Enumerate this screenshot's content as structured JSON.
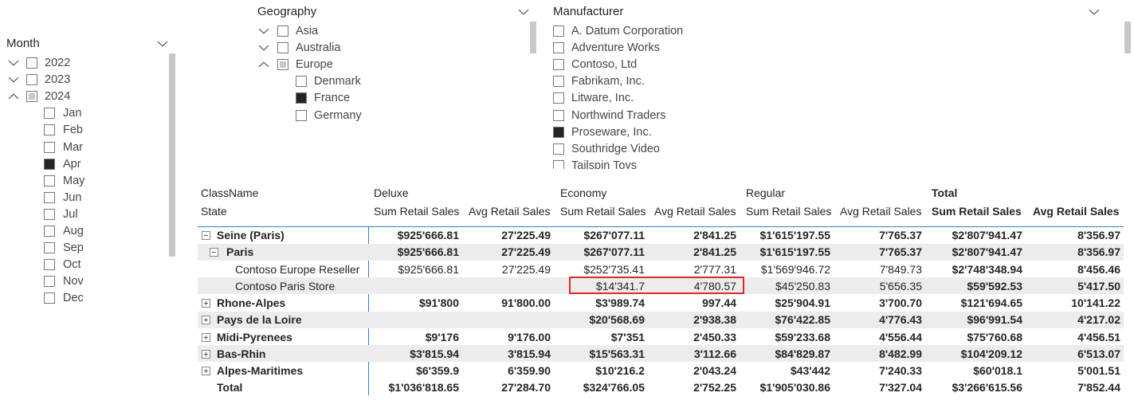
{
  "month_slicer": {
    "title": "Month",
    "items": [
      {
        "label": "2022",
        "expanded": false,
        "check": "off"
      },
      {
        "label": "2023",
        "expanded": false,
        "check": "off"
      },
      {
        "label": "2024",
        "expanded": true,
        "check": "partial",
        "children": [
          {
            "label": "Jan",
            "check": "off"
          },
          {
            "label": "Feb",
            "check": "off"
          },
          {
            "label": "Mar",
            "check": "off"
          },
          {
            "label": "Apr",
            "check": "on"
          },
          {
            "label": "May",
            "check": "off"
          },
          {
            "label": "Jun",
            "check": "off"
          },
          {
            "label": "Jul",
            "check": "off"
          },
          {
            "label": "Aug",
            "check": "off"
          },
          {
            "label": "Sep",
            "check": "off"
          },
          {
            "label": "Oct",
            "check": "off"
          },
          {
            "label": "Nov",
            "check": "off"
          },
          {
            "label": "Dec",
            "check": "off"
          }
        ]
      }
    ]
  },
  "geography_slicer": {
    "title": "Geography",
    "items": [
      {
        "label": "Asia",
        "expanded": false,
        "check": "off"
      },
      {
        "label": "Australia",
        "expanded": false,
        "check": "off"
      },
      {
        "label": "Europe",
        "expanded": true,
        "check": "partial",
        "children": [
          {
            "label": "Denmark",
            "check": "off"
          },
          {
            "label": "France",
            "check": "on"
          },
          {
            "label": "Germany",
            "check": "off"
          }
        ]
      }
    ]
  },
  "manufacturer_slicer": {
    "title": "Manufacturer",
    "items": [
      {
        "label": "A. Datum Corporation",
        "check": "off"
      },
      {
        "label": "Adventure Works",
        "check": "off"
      },
      {
        "label": "Contoso, Ltd",
        "check": "off"
      },
      {
        "label": "Fabrikam, Inc.",
        "check": "off"
      },
      {
        "label": "Litware, Inc.",
        "check": "off"
      },
      {
        "label": "Northwind Traders",
        "check": "off"
      },
      {
        "label": "Proseware, Inc.",
        "check": "on"
      },
      {
        "label": "Southridge Video",
        "check": "off"
      },
      {
        "label": "Tailspin Toys",
        "check": "off"
      }
    ]
  },
  "matrix": {
    "row_header_1": "ClassName",
    "row_header_2": "State",
    "column_groups": [
      "Deluxe",
      "Economy",
      "Regular",
      "Total"
    ],
    "column_headers": [
      "Sum Retail Sales",
      "Avg Retail Sales",
      "Sum Retail Sales",
      "Avg Retail Sales",
      "Sum Retail Sales",
      "Avg Retail Sales",
      "Sum Retail Sales",
      "Avg Retail Sales"
    ],
    "rows": [
      {
        "label": "Seine (Paris)",
        "level": 0,
        "expander": "collapse",
        "bold": true,
        "cells": [
          "$925'666.81",
          "27'225.49",
          "$267'077.11",
          "2'841.25",
          "$1'615'197.55",
          "7'765.37",
          "$2'807'941.47",
          "8'356.97"
        ]
      },
      {
        "label": "Paris",
        "level": 1,
        "expander": "collapse",
        "bold": true,
        "cells": [
          "$925'666.81",
          "27'225.49",
          "$267'077.11",
          "2'841.25",
          "$1'615'197.55",
          "7'765.37",
          "$2'807'941.47",
          "8'356.97"
        ]
      },
      {
        "label": "Contoso Europe Reseller",
        "level": 2,
        "expander": null,
        "bold": false,
        "cells": [
          "$925'666.81",
          "27'225.49",
          "$252'735.41",
          "2'777.31",
          "$1'569'946.72",
          "7'849.73",
          "$2'748'348.94",
          "8'456.46"
        ]
      },
      {
        "label": "Contoso Paris Store",
        "level": 2,
        "expander": null,
        "bold": false,
        "cells": [
          null,
          null,
          "$14'341.7",
          "4'780.57",
          "$45'250.83",
          "5'656.35",
          "$59'592.53",
          "5'417.50"
        ]
      },
      {
        "label": "Rhone-Alpes",
        "level": 0,
        "expander": "expand",
        "bold": true,
        "cells": [
          "$91'800",
          "91'800.00",
          "$3'989.74",
          "997.44",
          "$25'904.91",
          "3'700.70",
          "$121'694.65",
          "10'141.22"
        ]
      },
      {
        "label": "Pays de la Loire",
        "level": 0,
        "expander": "expand",
        "bold": true,
        "cells": [
          null,
          null,
          "$20'568.69",
          "2'938.38",
          "$76'422.85",
          "4'776.43",
          "$96'991.54",
          "4'217.02"
        ]
      },
      {
        "label": "Midi-Pyrenees",
        "level": 0,
        "expander": "expand",
        "bold": true,
        "cells": [
          "$9'176",
          "9'176.00",
          "$7'351",
          "2'450.33",
          "$59'233.68",
          "4'556.44",
          "$75'760.68",
          "4'456.51"
        ]
      },
      {
        "label": "Bas-Rhin",
        "level": 0,
        "expander": "expand",
        "bold": true,
        "cells": [
          "$3'815.94",
          "3'815.94",
          "$15'563.31",
          "3'112.66",
          "$84'829.87",
          "8'482.99",
          "$104'209.12",
          "6'513.07"
        ]
      },
      {
        "label": "Alpes-Maritimes",
        "level": 0,
        "expander": "expand",
        "bold": true,
        "cells": [
          "$6'359.9",
          "6'359.90",
          "$10'216.2",
          "2'043.24",
          "$43'442",
          "7'240.33",
          "$60'018.1",
          "5'001.51"
        ]
      },
      {
        "label": "Total",
        "level": 0,
        "expander": null,
        "bold": true,
        "cells": [
          "$1'036'818.65",
          "27'284.70",
          "$324'766.05",
          "2'752.25",
          "$1'905'030.86",
          "7'327.04",
          "$3'266'615.56",
          "7'852.44"
        ]
      }
    ]
  }
}
